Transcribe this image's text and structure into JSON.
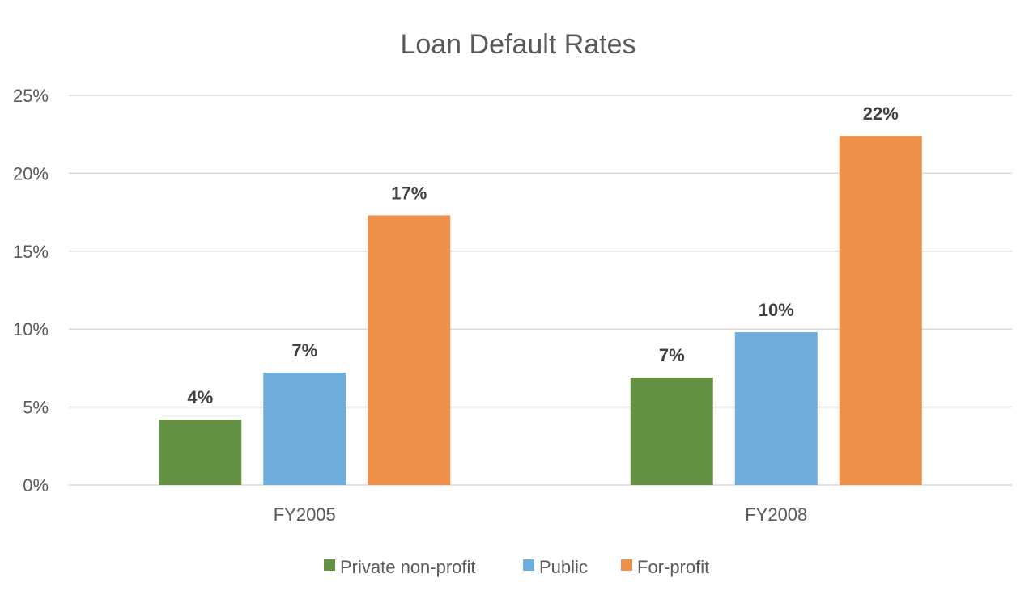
{
  "chart_data": {
    "type": "bar",
    "title": "Loan Default Rates",
    "categories": [
      "FY2005",
      "FY2008"
    ],
    "series": [
      {
        "name": "Private non-profit",
        "values": [
          4.2,
          6.9
        ],
        "labels": [
          "4%",
          "7%"
        ],
        "color": "#659145"
      },
      {
        "name": "Public",
        "values": [
          7.2,
          9.8
        ],
        "labels": [
          "7%",
          "10%"
        ],
        "color": "#6eaddb"
      },
      {
        "name": "For-profit",
        "values": [
          17.3,
          22.4
        ],
        "labels": [
          "17%",
          "22%"
        ],
        "color": "#ef904a"
      }
    ],
    "ylim": [
      0,
      25
    ],
    "yticks": [
      0,
      5,
      10,
      15,
      20,
      25
    ],
    "ytick_labels": [
      "0%",
      "5%",
      "10%",
      "15%",
      "20%",
      "25%"
    ],
    "grid": true,
    "legend_position": "bottom"
  }
}
